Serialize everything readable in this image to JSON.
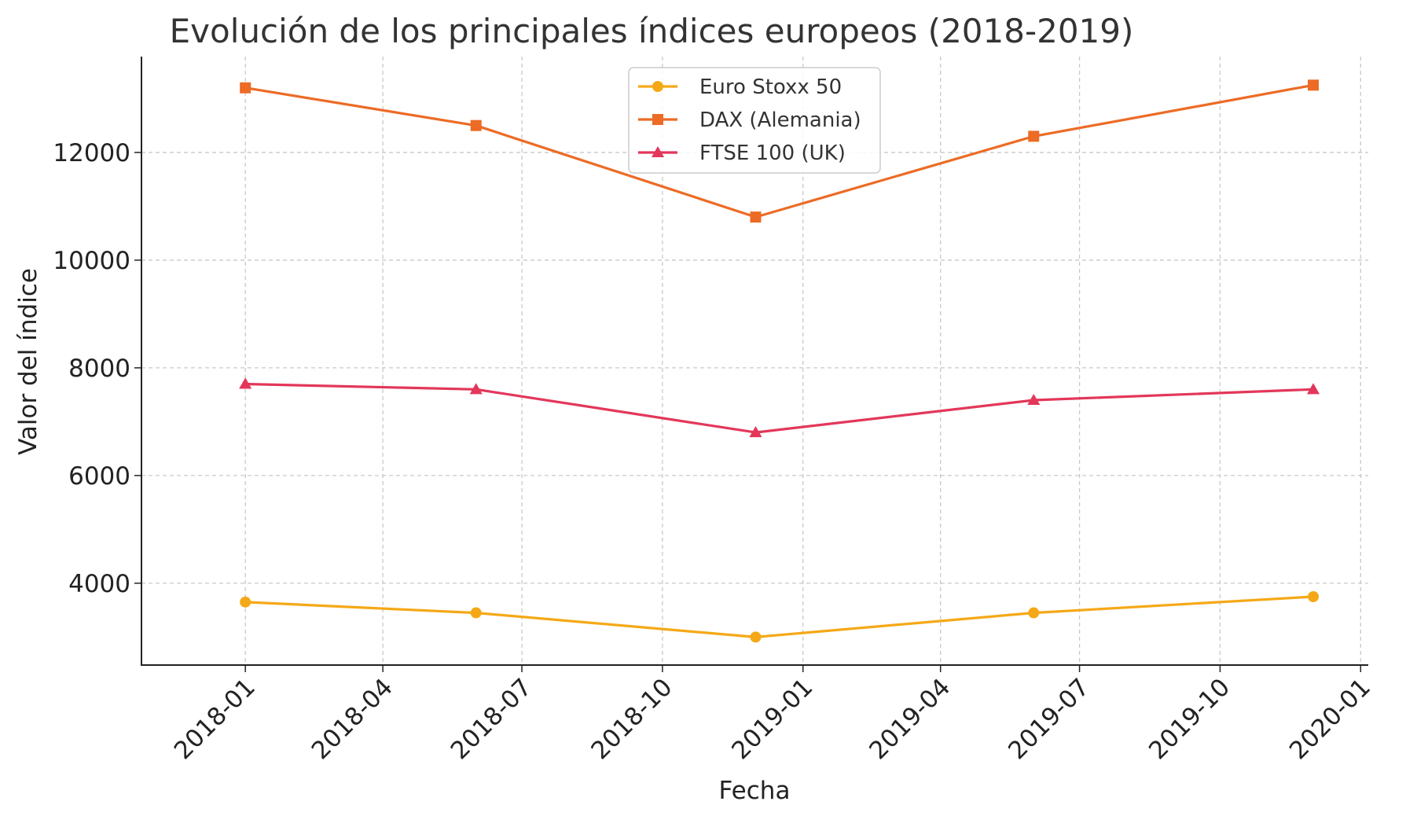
{
  "chart_data": {
    "type": "line",
    "title": "Evolución de los principales índices europeos (2018-2019)",
    "xlabel": "Fecha",
    "ylabel": "Valor del índice",
    "x_type": "date",
    "x": [
      "2018-01-01",
      "2018-06-01",
      "2018-12-01",
      "2019-06-01",
      "2019-12-01"
    ],
    "xlim": [
      "2017-10-25",
      "2020-01-06"
    ],
    "ylim": [
      2480,
      13780
    ],
    "x_ticks": [
      "2018-01",
      "2018-04",
      "2018-07",
      "2018-10",
      "2019-01",
      "2019-04",
      "2019-07",
      "2019-10",
      "2020-01"
    ],
    "y_ticks": [
      4000,
      6000,
      8000,
      10000,
      12000
    ],
    "grid": true,
    "legend_position": "top-center",
    "series": [
      {
        "name": "Euro Stoxx 50",
        "color": "#f5a817",
        "marker": "circle",
        "values": [
          3650,
          3450,
          3000,
          3450,
          3750
        ]
      },
      {
        "name": "DAX (Alemania)",
        "color": "#ec6b25",
        "marker": "square",
        "values": [
          13200,
          12500,
          10800,
          12300,
          13250
        ]
      },
      {
        "name": "FTSE 100 (UK)",
        "color": "#e3375a",
        "marker": "triangle",
        "values": [
          7700,
          7600,
          6800,
          7400,
          7600
        ]
      }
    ]
  }
}
